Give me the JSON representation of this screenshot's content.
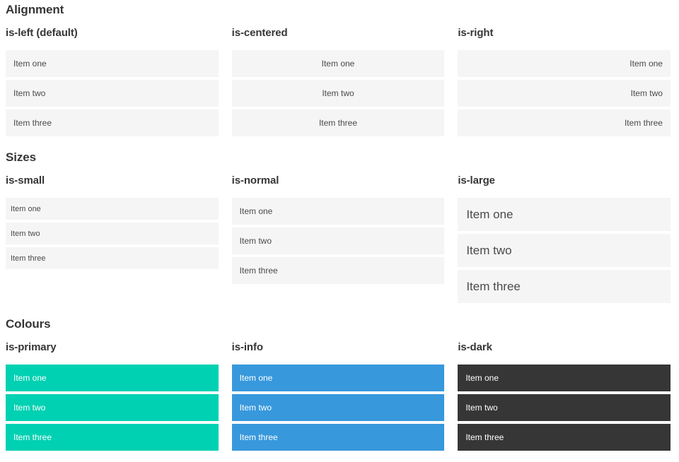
{
  "colors": {
    "primary": "#00d1b2",
    "info": "#3798dc",
    "dark": "#363636",
    "item-bg": "#f5f5f5",
    "item-text": "#4a4a4a",
    "heading-text": "#363636",
    "item-text-on-color": "#ffffff"
  },
  "sections": [
    {
      "title": "Alignment",
      "groups": [
        {
          "label": "is-left (default)",
          "variant": "is-left",
          "items": [
            "Item one",
            "Item two",
            "Item three"
          ]
        },
        {
          "label": "is-centered",
          "variant": "is-centered",
          "items": [
            "Item one",
            "Item two",
            "Item three"
          ]
        },
        {
          "label": "is-right",
          "variant": "is-right",
          "items": [
            "Item one",
            "Item two",
            "Item three"
          ]
        }
      ]
    },
    {
      "title": "Sizes",
      "groups": [
        {
          "label": "is-small",
          "variant": "is-small",
          "items": [
            "Item one",
            "Item two",
            "Item three"
          ]
        },
        {
          "label": "is-normal",
          "variant": "is-normal",
          "items": [
            "Item one",
            "Item two",
            "Item three"
          ]
        },
        {
          "label": "is-large",
          "variant": "is-large",
          "items": [
            "Item one",
            "Item two",
            "Item three"
          ]
        }
      ]
    },
    {
      "title": "Colours",
      "groups": [
        {
          "label": "is-primary",
          "variant": "is-primary",
          "items": [
            "Item one",
            "Item two",
            "Item three"
          ]
        },
        {
          "label": "is-info",
          "variant": "is-info",
          "items": [
            "Item one",
            "Item two",
            "Item three"
          ]
        },
        {
          "label": "is-dark",
          "variant": "is-dark",
          "items": [
            "Item one",
            "Item two",
            "Item three"
          ]
        }
      ]
    }
  ]
}
